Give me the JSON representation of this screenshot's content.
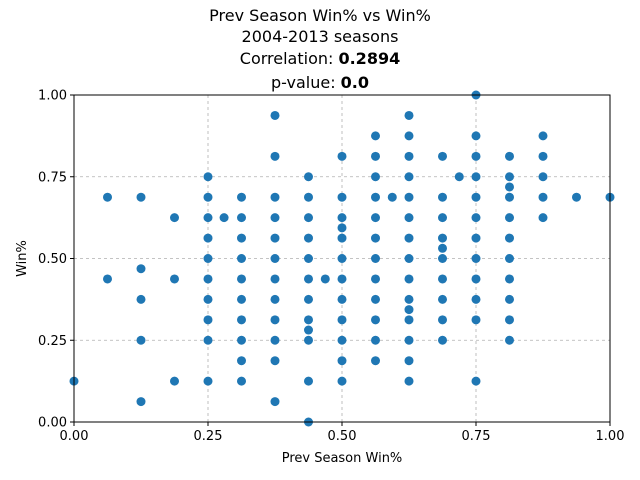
{
  "chart_data": {
    "type": "scatter",
    "title": "Prev Season Win% vs Win%",
    "subtitle": "2004-2013 seasons",
    "correlation_label": "Correlation: ",
    "correlation_value": "0.2894",
    "pvalue_label": "p-value: ",
    "pvalue_value": "0.0",
    "xlabel": "Prev Season Win%",
    "ylabel": "Win%",
    "xlim": [
      0.0,
      1.0
    ],
    "ylim": [
      0.0,
      1.0
    ],
    "xticks": [
      "0.00",
      "0.25",
      "0.50",
      "0.75",
      "1.00"
    ],
    "yticks": [
      "0.00",
      "0.25",
      "0.50",
      "0.75",
      "1.00"
    ],
    "grid": true,
    "marker_color": "#1f77b4",
    "points": [
      [
        0.0,
        0.125
      ],
      [
        0.0625,
        0.6875
      ],
      [
        0.0625,
        0.4375
      ],
      [
        0.125,
        0.6875
      ],
      [
        0.125,
        0.4688
      ],
      [
        0.125,
        0.375
      ],
      [
        0.125,
        0.25
      ],
      [
        0.125,
        0.0625
      ],
      [
        0.1875,
        0.625
      ],
      [
        0.1875,
        0.4375
      ],
      [
        0.1875,
        0.125
      ],
      [
        0.25,
        0.75
      ],
      [
        0.25,
        0.6875
      ],
      [
        0.25,
        0.625
      ],
      [
        0.25,
        0.5625
      ],
      [
        0.25,
        0.5
      ],
      [
        0.25,
        0.4375
      ],
      [
        0.25,
        0.375
      ],
      [
        0.25,
        0.3125
      ],
      [
        0.25,
        0.25
      ],
      [
        0.25,
        0.125
      ],
      [
        0.28,
        0.625
      ],
      [
        0.3125,
        0.6875
      ],
      [
        0.3125,
        0.625
      ],
      [
        0.3125,
        0.5625
      ],
      [
        0.3125,
        0.5
      ],
      [
        0.3125,
        0.4375
      ],
      [
        0.3125,
        0.375
      ],
      [
        0.3125,
        0.3125
      ],
      [
        0.3125,
        0.25
      ],
      [
        0.3125,
        0.1875
      ],
      [
        0.3125,
        0.125
      ],
      [
        0.375,
        0.9375
      ],
      [
        0.375,
        0.8125
      ],
      [
        0.375,
        0.6875
      ],
      [
        0.375,
        0.625
      ],
      [
        0.375,
        0.5625
      ],
      [
        0.375,
        0.5
      ],
      [
        0.375,
        0.4375
      ],
      [
        0.375,
        0.375
      ],
      [
        0.375,
        0.3125
      ],
      [
        0.375,
        0.25
      ],
      [
        0.375,
        0.1875
      ],
      [
        0.375,
        0.0625
      ],
      [
        0.4375,
        0.75
      ],
      [
        0.4375,
        0.6875
      ],
      [
        0.4375,
        0.625
      ],
      [
        0.4375,
        0.5625
      ],
      [
        0.4375,
        0.5
      ],
      [
        0.4375,
        0.4375
      ],
      [
        0.4375,
        0.375
      ],
      [
        0.4375,
        0.3125
      ],
      [
        0.4375,
        0.2812
      ],
      [
        0.4375,
        0.25
      ],
      [
        0.4375,
        0.125
      ],
      [
        0.4375,
        0.0
      ],
      [
        0.4688,
        0.4375
      ],
      [
        0.5,
        0.8125
      ],
      [
        0.5,
        0.6875
      ],
      [
        0.5,
        0.625
      ],
      [
        0.5,
        0.5938
      ],
      [
        0.5,
        0.5625
      ],
      [
        0.5,
        0.5
      ],
      [
        0.5,
        0.4375
      ],
      [
        0.5,
        0.375
      ],
      [
        0.5,
        0.3125
      ],
      [
        0.5,
        0.25
      ],
      [
        0.5,
        0.1875
      ],
      [
        0.5,
        0.125
      ],
      [
        0.5625,
        0.875
      ],
      [
        0.5625,
        0.8125
      ],
      [
        0.5625,
        0.75
      ],
      [
        0.5625,
        0.6875
      ],
      [
        0.5625,
        0.625
      ],
      [
        0.5625,
        0.5625
      ],
      [
        0.5625,
        0.5
      ],
      [
        0.5625,
        0.4375
      ],
      [
        0.5625,
        0.375
      ],
      [
        0.5625,
        0.3125
      ],
      [
        0.5625,
        0.25
      ],
      [
        0.5625,
        0.1875
      ],
      [
        0.5938,
        0.6875
      ],
      [
        0.625,
        0.9375
      ],
      [
        0.625,
        0.875
      ],
      [
        0.625,
        0.8125
      ],
      [
        0.625,
        0.75
      ],
      [
        0.625,
        0.6875
      ],
      [
        0.625,
        0.625
      ],
      [
        0.625,
        0.5625
      ],
      [
        0.625,
        0.5
      ],
      [
        0.625,
        0.4375
      ],
      [
        0.625,
        0.375
      ],
      [
        0.625,
        0.3438
      ],
      [
        0.625,
        0.3125
      ],
      [
        0.625,
        0.25
      ],
      [
        0.625,
        0.1875
      ],
      [
        0.625,
        0.125
      ],
      [
        0.6875,
        0.8125
      ],
      [
        0.6875,
        0.6875
      ],
      [
        0.6875,
        0.625
      ],
      [
        0.6875,
        0.5625
      ],
      [
        0.6875,
        0.5312
      ],
      [
        0.6875,
        0.5
      ],
      [
        0.6875,
        0.4375
      ],
      [
        0.6875,
        0.375
      ],
      [
        0.6875,
        0.3125
      ],
      [
        0.6875,
        0.25
      ],
      [
        0.7188,
        0.75
      ],
      [
        0.75,
        1.0
      ],
      [
        0.75,
        0.875
      ],
      [
        0.75,
        0.8125
      ],
      [
        0.75,
        0.75
      ],
      [
        0.75,
        0.6875
      ],
      [
        0.75,
        0.625
      ],
      [
        0.75,
        0.5625
      ],
      [
        0.75,
        0.5
      ],
      [
        0.75,
        0.4375
      ],
      [
        0.75,
        0.375
      ],
      [
        0.75,
        0.3125
      ],
      [
        0.75,
        0.125
      ],
      [
        0.8125,
        0.8125
      ],
      [
        0.8125,
        0.75
      ],
      [
        0.8125,
        0.7188
      ],
      [
        0.8125,
        0.6875
      ],
      [
        0.8125,
        0.625
      ],
      [
        0.8125,
        0.5625
      ],
      [
        0.8125,
        0.5
      ],
      [
        0.8125,
        0.4375
      ],
      [
        0.8125,
        0.375
      ],
      [
        0.8125,
        0.3125
      ],
      [
        0.8125,
        0.25
      ],
      [
        0.875,
        0.875
      ],
      [
        0.875,
        0.8125
      ],
      [
        0.875,
        0.75
      ],
      [
        0.875,
        0.6875
      ],
      [
        0.875,
        0.625
      ],
      [
        0.9375,
        0.6875
      ],
      [
        1.0,
        0.6875
      ]
    ]
  }
}
